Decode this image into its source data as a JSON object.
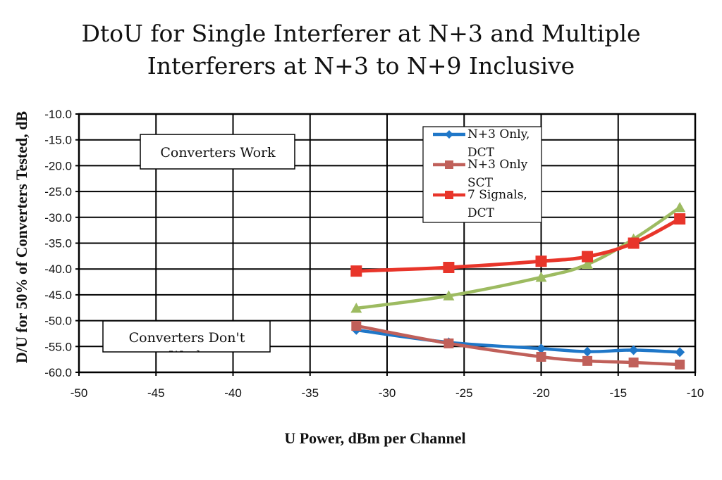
{
  "chart_data": {
    "type": "line",
    "title_lines": [
      "DtoU for Single Interferer at N+3 and Multiple",
      "Interferers at N+3 to N+9 Inclusive"
    ],
    "xlabel": "U Power, dBm per Channel",
    "ylabel": "D/U for 50% of Converters Tested, dB",
    "xlim": [
      -50,
      -10
    ],
    "ylim": [
      -60,
      -10
    ],
    "x_ticks": [
      "-50",
      "-45",
      "-40",
      "-35",
      "-30",
      "-25",
      "-20",
      "-15",
      "-10"
    ],
    "y_ticks": [
      "-10.0",
      "-15.0",
      "-20.0",
      "-25.0",
      "-30.0",
      "-35.0",
      "-40.0",
      "-45.0",
      "-50.0",
      "-55.0",
      "-60.0"
    ],
    "grid": true,
    "legend_position": "top-right",
    "series": [
      {
        "name": "N+3 Only, DCT",
        "legend_lines": [
          "N+3 Only,",
          "DCT"
        ],
        "color": "#1f77c8",
        "marker": "diamond",
        "x": [
          -32,
          -26,
          -20,
          -17,
          -14,
          -11
        ],
        "y": [
          -51.8,
          -54.2,
          -55.4,
          -56.0,
          -55.7,
          -56.1
        ]
      },
      {
        "name": "N+3 Only SCT",
        "legend_lines": [
          "N+3 Only",
          "SCT"
        ],
        "color": "#c0605a",
        "marker": "square",
        "x": [
          -32,
          -26,
          -20,
          -17,
          -14,
          -11
        ],
        "y": [
          -51.0,
          -54.4,
          -57.0,
          -57.8,
          -58.1,
          -58.5
        ]
      },
      {
        "name": "7 Signals, DCT",
        "legend_lines": [
          "7 Signals,",
          "DCT"
        ],
        "color": "#e8352a",
        "marker": "square",
        "x": [
          -32,
          -26,
          -20,
          -17,
          -14,
          -11
        ],
        "y": [
          -40.4,
          -39.7,
          -38.5,
          -37.6,
          -35.0,
          -30.3
        ]
      },
      {
        "name": "",
        "legend_lines": [],
        "color": "#9dbb61",
        "marker": "triangle",
        "x": [
          -32,
          -26,
          -20,
          -17,
          -14,
          -11
        ],
        "y": [
          -47.6,
          -45.2,
          -41.6,
          -39.1,
          -34.2,
          -28.1
        ]
      }
    ],
    "annotations": [
      {
        "text": "Converters Work"
      },
      {
        "text": "Converters Don't",
        "clipped_text": "Work"
      }
    ]
  }
}
